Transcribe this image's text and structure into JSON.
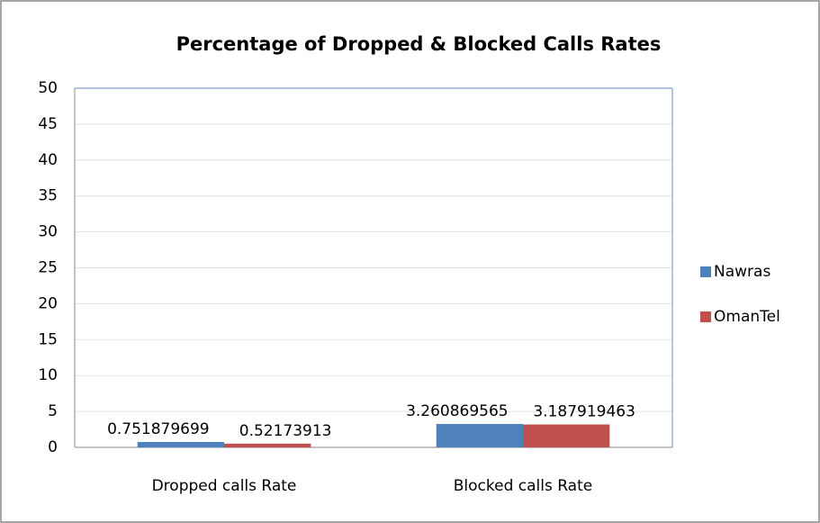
{
  "chart_data": {
    "type": "bar",
    "title": "Percentage of Dropped & Blocked Calls Rates",
    "categories": [
      "Dropped calls Rate",
      "Blocked calls Rate"
    ],
    "series": [
      {
        "name": "Nawras",
        "color": "#4f81bd",
        "values": [
          0.751879699,
          3.260869565
        ]
      },
      {
        "name": "OmanTel",
        "color": "#c0504d",
        "values": [
          0.52173913,
          3.187919463
        ]
      }
    ],
    "ylim": [
      0,
      50
    ],
    "yticks": [
      0,
      5,
      10,
      15,
      20,
      25,
      30,
      35,
      40,
      45,
      50
    ],
    "grid": true,
    "legend": "right",
    "data_labels": true
  }
}
